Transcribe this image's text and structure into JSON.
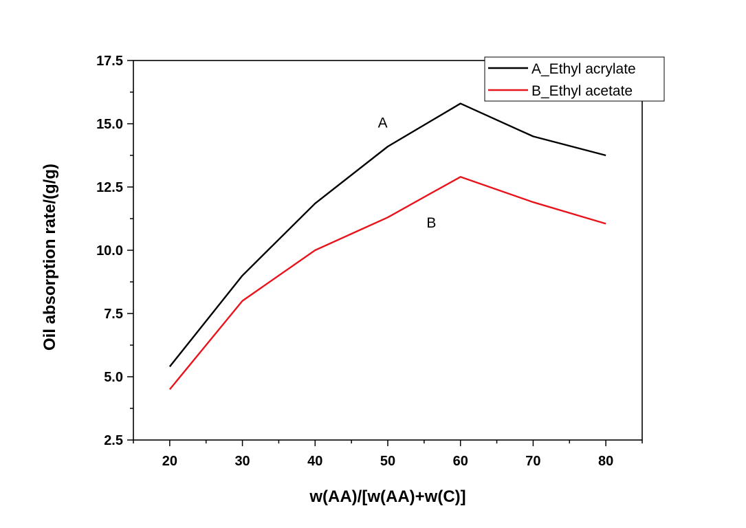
{
  "chart_data": {
    "type": "line",
    "title": "",
    "xlabel": "w(AA)/[w(AA)+w(C)]",
    "ylabel": "Oil absorption rate/(g/g)",
    "x": [
      20,
      30,
      40,
      50,
      60,
      70,
      80
    ],
    "xticks": [
      "20",
      "30",
      "40",
      "50",
      "60",
      "70",
      "80"
    ],
    "xlim": [
      15,
      85
    ],
    "ylim": [
      2.5,
      17.5
    ],
    "yticks": [
      "2.5",
      "5.0",
      "7.5",
      "10.0",
      "12.5",
      "15.0",
      "17.5"
    ],
    "grid": false,
    "legend_position": "top-right",
    "series": [
      {
        "name": "A_Ethyl acrylate",
        "color": "#000000",
        "values": [
          5.4,
          9.0,
          11.85,
          14.1,
          15.8,
          14.5,
          13.75
        ]
      },
      {
        "name": "B_Ethyl acetate",
        "color": "#e8141c",
        "values": [
          4.5,
          8.0,
          10.0,
          11.3,
          12.9,
          11.9,
          11.05
        ]
      }
    ],
    "annotations": [
      {
        "text": "A",
        "x": 49.3,
        "y": 14.85
      },
      {
        "text": "B",
        "x": 56,
        "y": 10.9
      }
    ]
  }
}
